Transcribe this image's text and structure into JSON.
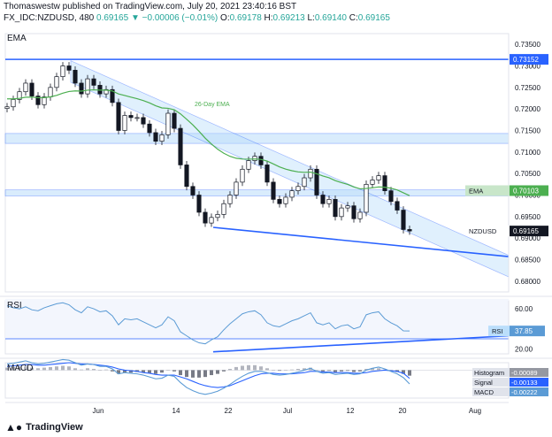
{
  "header": {
    "line1": "Thomaswestw published on TradingView.com, July 20, 2021 23:40:16 BST",
    "symbol": "FX_IDC:NZDUSD, 480",
    "last": "0.69165",
    "change": "▼ −0.00006 (−0.01%)",
    "o_label": "O:",
    "o": "0.69178",
    "h_label": "H:",
    "h": "0.69213",
    "l_label": "L:",
    "l": "0.69140",
    "c_label": "C:",
    "c": "0.69165"
  },
  "brand": "TradingView",
  "chart_data": [
    {
      "type": "candlestick",
      "pane_label": "EMA",
      "annotation": "26-Day EMA",
      "ylim": [
        0.6775,
        0.7375
      ],
      "yticks": [
        "0.73500",
        "0.73000",
        "0.72500",
        "0.72000",
        "0.71500",
        "0.71000",
        "0.70500",
        "0.70000",
        "0.69500",
        "0.69000",
        "0.68500",
        "0.68000"
      ],
      "xticks": [
        "Jun",
        "14",
        "22",
        "Jul",
        "12",
        "20",
        "Aug"
      ],
      "price_tags": [
        {
          "label": "",
          "value": "0.73152",
          "color": "#2962ff"
        },
        {
          "label": "EMA",
          "value": "0.70103",
          "color": "#4caf50"
        },
        {
          "label": "NZDUSD",
          "value": "0.69165",
          "color": "#131722"
        }
      ],
      "close": [
        0.7205,
        0.7222,
        0.724,
        0.726,
        0.723,
        0.721,
        0.7228,
        0.725,
        0.7275,
        0.73,
        0.729,
        0.726,
        0.7235,
        0.727,
        0.7255,
        0.7235,
        0.7245,
        0.7215,
        0.715,
        0.7185,
        0.718,
        0.718,
        0.7165,
        0.7145,
        0.7125,
        0.714,
        0.719,
        0.7155,
        0.707,
        0.702,
        0.7,
        0.696,
        0.6935,
        0.6948,
        0.6955,
        0.698,
        0.7,
        0.703,
        0.706,
        0.708,
        0.709,
        0.707,
        0.703,
        0.699,
        0.698,
        0.6995,
        0.701,
        0.702,
        0.704,
        0.706,
        0.7,
        0.698,
        0.699,
        0.695,
        0.697,
        0.6975,
        0.6945,
        0.696,
        0.7025,
        0.7035,
        0.7045,
        0.701,
        0.6985,
        0.6965,
        0.692,
        0.69165
      ]
    },
    {
      "type": "line",
      "pane_label": "RSI",
      "value_label": "RSI",
      "value": "37.85",
      "ylim": [
        15,
        68
      ],
      "yticks": [
        "60.00",
        "40.00",
        "20.00"
      ],
      "values": [
        63,
        61,
        60,
        62,
        59,
        58,
        61,
        63,
        65,
        66,
        64,
        59,
        56,
        62,
        60,
        57,
        58,
        53,
        44,
        50,
        49,
        50,
        47,
        44,
        41,
        44,
        52,
        48,
        37,
        33,
        29,
        26,
        25,
        29,
        32,
        39,
        45,
        50,
        55,
        57,
        58,
        54,
        46,
        43,
        42,
        45,
        48,
        50,
        53,
        56,
        46,
        44,
        46,
        40,
        43,
        44,
        40,
        42,
        54,
        56,
        57,
        50,
        46,
        43,
        38,
        37.85
      ]
    },
    {
      "type": "histogram",
      "pane_label": "MACD",
      "ylim": [
        -0.0045,
        0.0012
      ],
      "legend": [
        {
          "name": "Histogram",
          "value": "-0.00089",
          "color": "#9598a1"
        },
        {
          "name": "Signal",
          "value": "-0.00133",
          "color": "#2962ff"
        },
        {
          "name": "MACD",
          "value": "-0.00222",
          "color": "#5b9bd5"
        }
      ],
      "histogram": [
        0.0004,
        0.0005,
        0.0006,
        0.0006,
        0.0004,
        0.0003,
        0.0004,
        0.0005,
        0.0006,
        0.0007,
        0.0006,
        0.0003,
        0.0001,
        0.0003,
        0.0002,
        0.0,
        0.0001,
        -0.0002,
        -0.0006,
        -0.0004,
        -0.0004,
        -0.0003,
        -0.0004,
        -0.0005,
        -0.0006,
        -0.0004,
        0.0,
        -0.0002,
        -0.0008,
        -0.0011,
        -0.0012,
        -0.0012,
        -0.0011,
        -0.0008,
        -0.0006,
        -0.0002,
        0.0002,
        0.0005,
        0.0007,
        0.0008,
        0.0008,
        0.0006,
        0.0003,
        0.0,
        -0.0001,
        0.0,
        0.0001,
        0.0002,
        0.0003,
        0.0004,
        0.0,
        -0.0002,
        -0.0001,
        -0.0003,
        -0.0002,
        -0.0001,
        -0.0003,
        -0.0002,
        0.0002,
        0.0003,
        0.0003,
        0.0001,
        -0.0001,
        -0.0003,
        -0.0006,
        -0.00089
      ],
      "macd": [
        0.001,
        0.0011,
        0.0013,
        0.0015,
        0.0012,
        0.001,
        0.0011,
        0.0013,
        0.0015,
        0.0017,
        0.0016,
        0.0012,
        0.0008,
        0.001,
        0.0009,
        0.0006,
        0.0006,
        0.0002,
        -0.0006,
        -0.0004,
        -0.0005,
        -0.0006,
        -0.0008,
        -0.0011,
        -0.0014,
        -0.0013,
        -0.0008,
        -0.001,
        -0.002,
        -0.0028,
        -0.0033,
        -0.0037,
        -0.0039,
        -0.0037,
        -0.0034,
        -0.0029,
        -0.0023,
        -0.0016,
        -0.001,
        -0.0005,
        -0.0002,
        -0.0002,
        -0.0004,
        -0.0007,
        -0.0008,
        -0.0007,
        -0.0005,
        -0.0003,
        0.0,
        0.0003,
        -0.0002,
        -0.0005,
        -0.0004,
        -0.0007,
        -0.0006,
        -0.0005,
        -0.0007,
        -0.0006,
        0.0,
        0.0003,
        0.0005,
        0.0002,
        -0.0002,
        -0.0006,
        -0.0012,
        -0.00222
      ],
      "signal": [
        0.0006,
        0.0007,
        0.0008,
        0.0009,
        0.0009,
        0.0008,
        0.0008,
        0.0009,
        0.001,
        0.0011,
        0.0012,
        0.0011,
        0.001,
        0.001,
        0.0009,
        0.0008,
        0.0007,
        0.0005,
        0.0002,
        0.0,
        -0.0001,
        -0.0002,
        -0.0004,
        -0.0005,
        -0.0007,
        -0.0008,
        -0.0008,
        -0.0008,
        -0.0011,
        -0.0014,
        -0.0018,
        -0.0022,
        -0.0025,
        -0.0027,
        -0.0028,
        -0.0027,
        -0.0025,
        -0.0021,
        -0.0017,
        -0.0013,
        -0.0009,
        -0.0006,
        -0.0005,
        -0.0005,
        -0.0006,
        -0.0006,
        -0.0006,
        -0.0005,
        -0.0004,
        -0.0002,
        -0.0002,
        -0.0003,
        -0.0003,
        -0.0004,
        -0.0004,
        -0.0004,
        -0.0005,
        -0.0005,
        -0.0004,
        -0.0002,
        -0.0001,
        0.0,
        -0.0001,
        -0.0002,
        -0.0005,
        -0.00133
      ]
    }
  ]
}
